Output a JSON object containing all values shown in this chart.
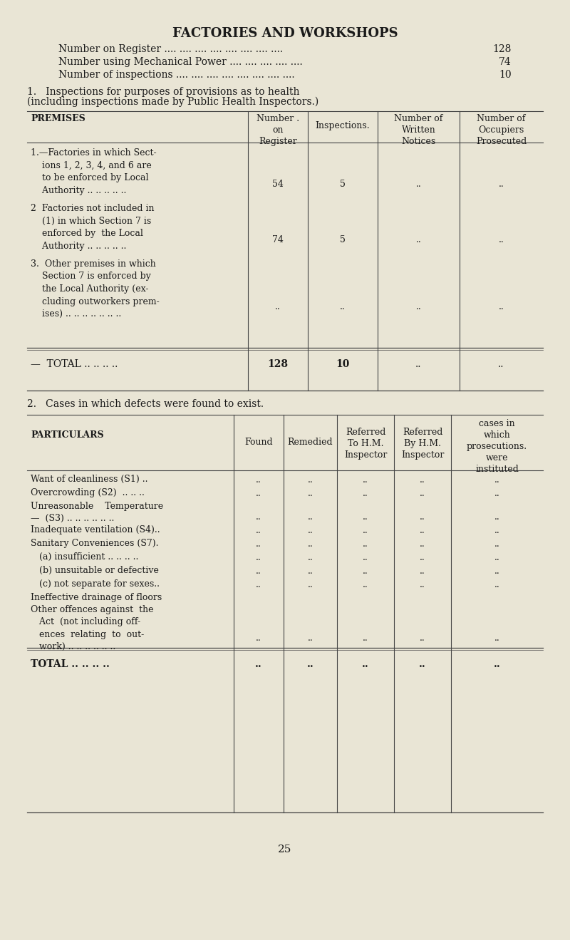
{
  "bg_color": "#e9e5d5",
  "text_color": "#1a1a1a",
  "title": "FACTORIES AND WORKSHOPS",
  "stat_labels": [
    "Number on Register .... .... .... .... .... .... .... ....",
    "Number using Mechanical Power .... .... .... .... ....",
    "Number of inspections .... .... .... .... .... .... .... ...."
  ],
  "stat_values": [
    "128",
    "74",
    "10"
  ],
  "page_number": "25"
}
